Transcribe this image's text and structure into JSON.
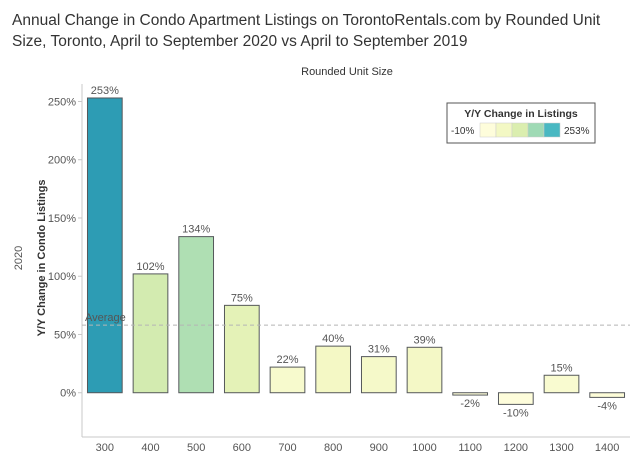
{
  "title": "Annual Change in Condo Apartment Listings on TorontoRentals.com by Rounded Unit Size, Toronto, April to September 2020 vs April to September 2019",
  "chart_data": {
    "type": "bar",
    "column_header": "Rounded Unit Size",
    "row_header": "2020",
    "ylabel": "Y/Y Change in Condo Listings",
    "categories": [
      "300",
      "400",
      "500",
      "600",
      "700",
      "800",
      "900",
      "1000",
      "1100",
      "1200",
      "1300",
      "1400"
    ],
    "values": [
      253,
      102,
      134,
      75,
      22,
      40,
      31,
      39,
      -2,
      -10,
      15,
      -4
    ],
    "data_labels": [
      "253%",
      "102%",
      "134%",
      "75%",
      "22%",
      "40%",
      "31%",
      "39%",
      "-2%",
      "-10%",
      "15%",
      "-4%"
    ],
    "ylim": [
      -38,
      265
    ],
    "y_ticks": [
      0,
      50,
      100,
      150,
      200,
      250
    ],
    "y_tick_labels": [
      "0%",
      "50%",
      "100%",
      "150%",
      "200%",
      "250%"
    ],
    "reference_line": {
      "label": "Average",
      "value": 58
    },
    "legend": {
      "title": "Y/Y Change in Listings",
      "min_label": "-10%",
      "max_label": "253%",
      "placement": "top-right"
    },
    "color_scale": [
      "#fefddb",
      "#f3f8c4",
      "#dbeeaf",
      "#9fdab5",
      "#49b8c2",
      "#2d9cb4"
    ],
    "colors": {
      "bar_stroke": "#55585b",
      "axis": "#c8c8c8",
      "text": "#555555",
      "average_line": "#b5b5b5"
    }
  }
}
